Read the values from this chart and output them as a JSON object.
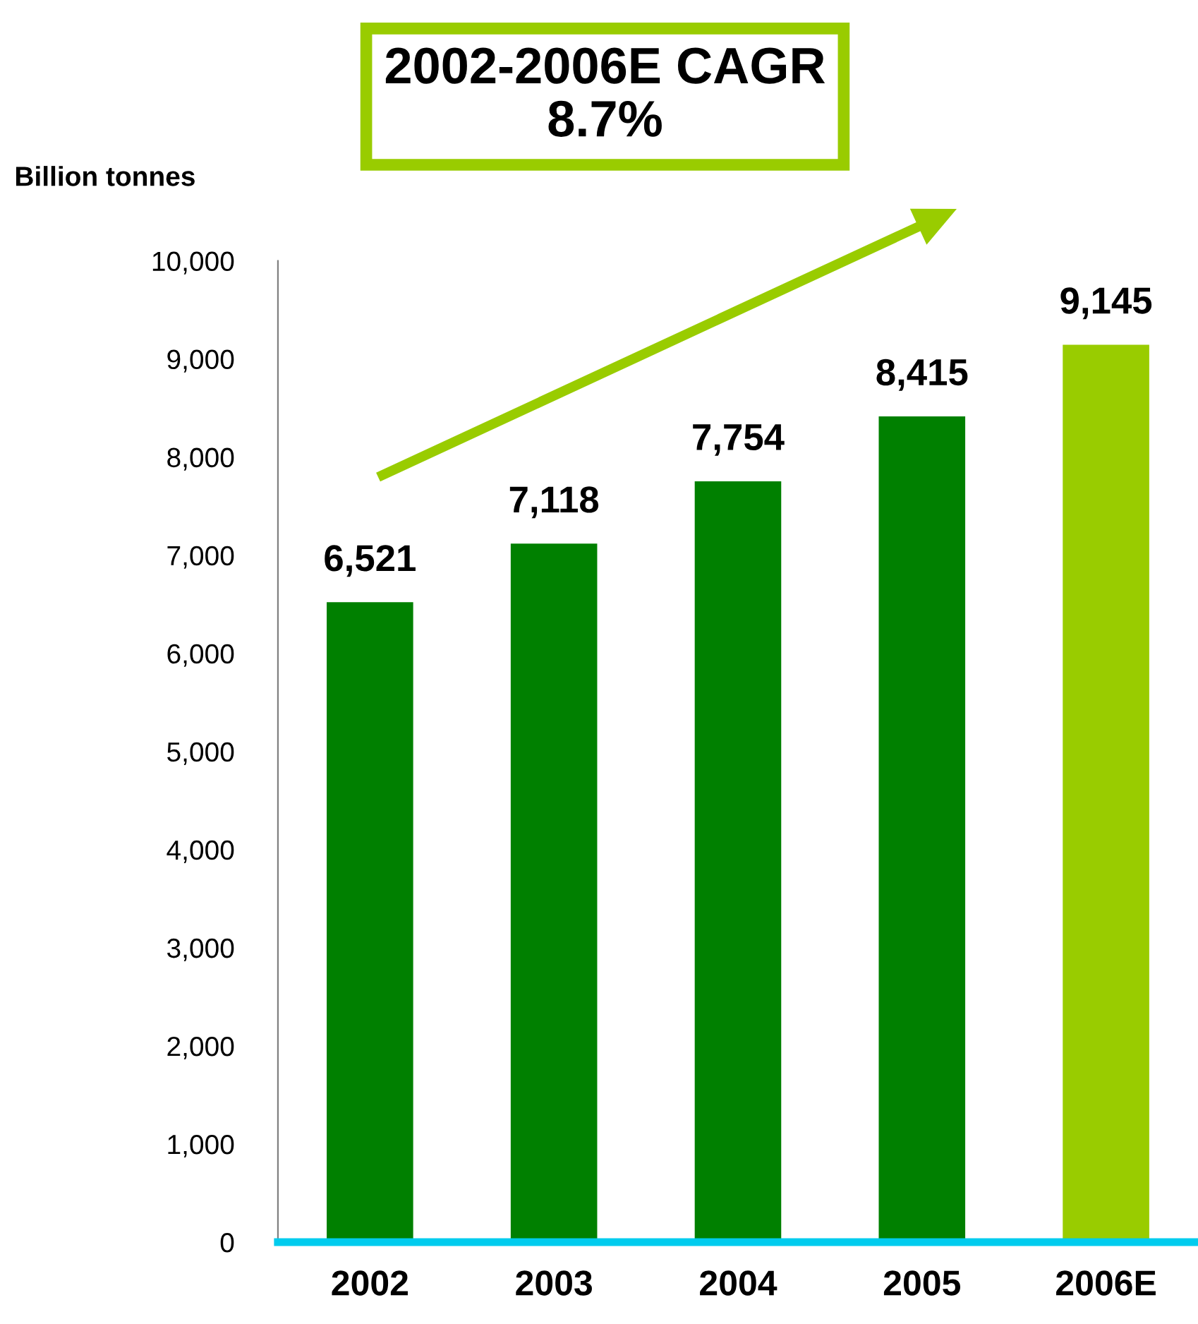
{
  "chart_data": {
    "type": "bar",
    "ylabel": "Billion tonnes",
    "categories": [
      "2002",
      "2003",
      "2004",
      "2005",
      "2006E"
    ],
    "values": [
      6521,
      7118,
      7754,
      8415,
      9145
    ],
    "colors": [
      "#008000",
      "#008000",
      "#008000",
      "#008000",
      "#99cc00"
    ],
    "value_labels": [
      "6,521",
      "7,118",
      "7,754",
      "8,415",
      "9,145"
    ],
    "ylim": [
      0,
      10000
    ],
    "yticks": [
      0,
      {
        "value": 1000,
        "label": "1,000"
      },
      {
        "value": 2000,
        "label": "2,000"
      },
      {
        "value": 3000,
        "label": "3,000"
      },
      {
        "value": 4000,
        "label": "4,000"
      },
      {
        "value": 5000,
        "label": "5,000"
      },
      {
        "value": 6000,
        "label": "6,000"
      },
      {
        "value": 7000,
        "label": "7,000"
      },
      {
        "value": 8000,
        "label": "8,000"
      },
      {
        "value": 9000,
        "label": "9,000"
      },
      {
        "value": 10000,
        "label": "10,000"
      }
    ],
    "annotations": [
      "2002-2006E CAGR\n8.7%"
    ],
    "grid": false
  }
}
